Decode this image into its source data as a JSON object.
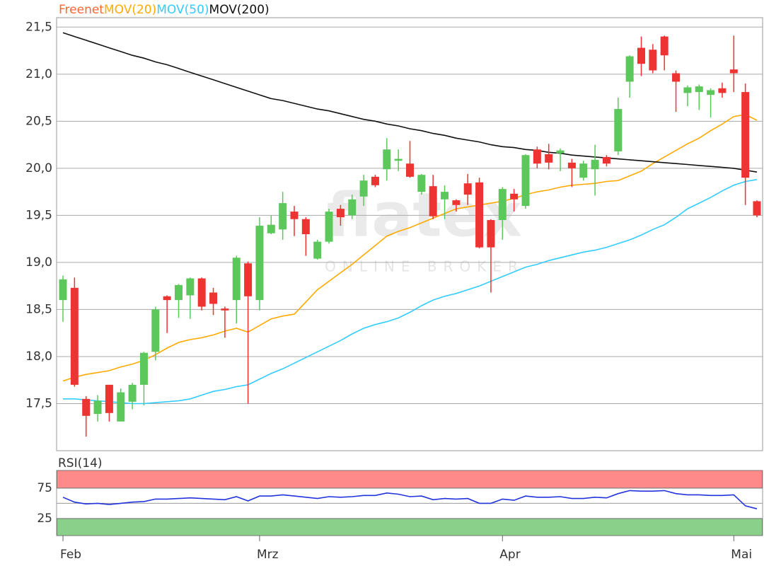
{
  "chart_data": [
    {
      "type": "candlestick",
      "categories": [
        "Feb",
        null,
        null,
        null,
        null,
        null,
        null,
        null,
        null,
        null,
        null,
        null,
        null,
        null,
        null,
        null,
        null,
        "Mrz",
        null,
        null,
        null,
        null,
        null,
        null,
        null,
        null,
        null,
        null,
        null,
        null,
        null,
        null,
        null,
        null,
        null,
        null,
        null,
        null,
        "Apr",
        null,
        null,
        null,
        null,
        null,
        null,
        null,
        null,
        null,
        null,
        null,
        null,
        null,
        null,
        null,
        null,
        null,
        null,
        null,
        "Mai",
        null,
        null
      ],
      "candles": {
        "name": "Freenet",
        "color": "#ff6633",
        "up_color": "#5cc85c",
        "down_color": "#ee3333",
        "open": [
          18.6,
          18.73,
          17.55,
          17.39,
          17.7,
          17.31,
          17.52,
          17.7,
          18.05,
          18.64,
          18.6,
          18.65,
          18.83,
          18.68,
          18.51,
          18.6,
          18.99,
          18.6,
          19.31,
          19.35,
          19.54,
          19.46,
          19.04,
          19.22,
          19.57,
          19.5,
          19.7,
          19.91,
          19.99,
          20.08,
          20.05,
          19.75,
          19.81,
          19.67,
          19.66,
          19.84,
          19.85,
          19.45,
          19.45,
          19.73,
          19.6,
          20.2,
          20.15,
          20.16,
          20.06,
          19.9,
          19.99,
          20.12,
          20.18,
          20.92,
          21.28,
          21.26,
          21.4,
          21.01,
          20.8,
          20.81,
          20.78,
          20.85,
          21.05,
          20.81,
          19.65
        ],
        "high": [
          18.86,
          18.84,
          17.58,
          17.59,
          17.7,
          17.66,
          17.72,
          18.05,
          18.53,
          18.65,
          18.77,
          18.84,
          18.84,
          18.73,
          18.53,
          19.07,
          19.01,
          19.48,
          19.5,
          19.75,
          19.6,
          19.48,
          19.24,
          19.57,
          19.61,
          19.72,
          19.93,
          19.93,
          20.32,
          20.2,
          20.29,
          19.94,
          19.93,
          19.82,
          19.67,
          19.94,
          19.9,
          19.46,
          19.8,
          19.78,
          20.15,
          20.23,
          20.26,
          20.21,
          20.1,
          20.08,
          20.25,
          20.14,
          20.75,
          21.2,
          21.4,
          21.32,
          21.41,
          21.04,
          20.88,
          20.89,
          20.85,
          20.91,
          21.41,
          20.9,
          19.66
        ],
        "low": [
          18.37,
          17.68,
          17.15,
          17.31,
          17.31,
          17.31,
          17.44,
          17.48,
          17.96,
          18.25,
          18.41,
          18.4,
          18.49,
          18.44,
          18.2,
          18.35,
          17.5,
          18.49,
          19.3,
          19.24,
          19.28,
          19.07,
          19.03,
          19.2,
          19.39,
          19.46,
          19.6,
          19.8,
          19.87,
          19.97,
          19.9,
          19.72,
          19.46,
          19.46,
          19.54,
          19.61,
          19.15,
          18.68,
          19.24,
          19.54,
          19.57,
          20.0,
          19.99,
          19.97,
          19.8,
          19.87,
          19.71,
          20.02,
          20.14,
          20.75,
          20.98,
          21.01,
          21.04,
          20.6,
          20.66,
          20.62,
          20.54,
          20.75,
          20.81,
          19.61,
          19.48
        ],
        "close": [
          18.82,
          17.7,
          17.37,
          17.53,
          17.4,
          17.62,
          17.7,
          18.04,
          18.5,
          18.6,
          18.76,
          18.83,
          18.53,
          18.56,
          18.49,
          19.05,
          18.64,
          19.39,
          19.4,
          19.63,
          19.46,
          19.3,
          19.22,
          19.54,
          19.48,
          19.67,
          19.87,
          19.82,
          20.2,
          20.1,
          19.91,
          19.93,
          19.49,
          19.75,
          19.61,
          19.72,
          19.16,
          19.16,
          19.78,
          19.67,
          20.14,
          20.05,
          20.06,
          20.19,
          20.0,
          20.05,
          20.09,
          20.05,
          20.63,
          21.19,
          21.11,
          21.04,
          21.2,
          20.92,
          20.86,
          20.87,
          20.83,
          20.8,
          21.01,
          19.9,
          19.5
        ]
      },
      "series": [
        {
          "name": "MOV(20)",
          "color": "#ffaa00",
          "values": [
            17.74,
            17.78,
            17.81,
            17.83,
            17.85,
            17.89,
            17.92,
            17.96,
            18.02,
            18.09,
            18.15,
            18.18,
            18.2,
            18.23,
            18.27,
            18.3,
            18.26,
            18.33,
            18.4,
            18.43,
            18.45,
            18.58,
            18.71,
            18.8,
            18.89,
            18.98,
            19.08,
            19.18,
            19.28,
            19.33,
            19.37,
            19.42,
            19.47,
            19.52,
            19.57,
            19.59,
            19.61,
            19.63,
            19.65,
            19.68,
            19.72,
            19.75,
            19.77,
            19.8,
            19.82,
            19.83,
            19.84,
            19.86,
            19.87,
            19.92,
            19.97,
            20.05,
            20.12,
            20.19,
            20.26,
            20.32,
            20.4,
            20.47,
            20.55,
            20.57,
            20.51
          ]
        },
        {
          "name": "MOV(50)",
          "color": "#33ccff",
          "values": [
            17.55,
            17.55,
            17.54,
            17.53,
            17.52,
            17.51,
            17.5,
            17.5,
            17.51,
            17.52,
            17.53,
            17.55,
            17.59,
            17.63,
            17.65,
            17.68,
            17.7,
            17.76,
            17.82,
            17.87,
            17.93,
            17.99,
            18.05,
            18.11,
            18.17,
            18.24,
            18.3,
            18.34,
            18.37,
            18.41,
            18.47,
            18.54,
            18.6,
            18.64,
            18.67,
            18.71,
            18.75,
            18.8,
            18.85,
            18.9,
            18.95,
            18.98,
            19.02,
            19.05,
            19.08,
            19.11,
            19.13,
            19.16,
            19.2,
            19.24,
            19.29,
            19.35,
            19.4,
            19.48,
            19.57,
            19.63,
            19.69,
            19.76,
            19.82,
            19.86,
            19.88
          ]
        },
        {
          "name": "MOV(200)",
          "color": "#111111",
          "values": [
            21.44,
            21.4,
            21.36,
            21.32,
            21.28,
            21.24,
            21.2,
            21.17,
            21.13,
            21.1,
            21.06,
            21.02,
            20.98,
            20.94,
            20.9,
            20.86,
            20.82,
            20.78,
            20.74,
            20.72,
            20.69,
            20.66,
            20.63,
            20.61,
            20.58,
            20.55,
            20.52,
            20.5,
            20.47,
            20.45,
            20.42,
            20.4,
            20.37,
            20.35,
            20.32,
            20.3,
            20.28,
            20.25,
            20.23,
            20.22,
            20.2,
            20.19,
            20.17,
            20.16,
            20.14,
            20.13,
            20.12,
            20.11,
            20.1,
            20.09,
            20.08,
            20.07,
            20.06,
            20.05,
            20.04,
            20.03,
            20.02,
            20.01,
            20.0,
            19.98,
            19.96
          ]
        }
      ],
      "ylim": [
        17.0,
        21.6
      ],
      "yticks": [
        {
          "value": 17.5,
          "label": "17,5"
        },
        {
          "value": 18.0,
          "label": "18,0"
        },
        {
          "value": 18.5,
          "label": "18,5"
        },
        {
          "value": 19.0,
          "label": "19,0"
        },
        {
          "value": 19.5,
          "label": "19,5"
        },
        {
          "value": 20.0,
          "label": "20,0"
        },
        {
          "value": 20.5,
          "label": "20,5"
        },
        {
          "value": 21.0,
          "label": "21,0"
        },
        {
          "value": 21.5,
          "label": "21,5"
        }
      ],
      "grid": true,
      "watermark": {
        "brand": "flatex",
        "tagline": "ONLINE BROKER"
      }
    },
    {
      "type": "line",
      "series": [
        {
          "name": "RSI(14)",
          "color": "#2233dd",
          "values": [
            60,
            52,
            49,
            50,
            48,
            50,
            52,
            53,
            57,
            57,
            58,
            59,
            58,
            57,
            56,
            61,
            54,
            62,
            62,
            64,
            62,
            60,
            58,
            61,
            60,
            61,
            63,
            63,
            67,
            65,
            61,
            62,
            56,
            58,
            57,
            58,
            50,
            50,
            57,
            55,
            62,
            60,
            60,
            61,
            58,
            58,
            60,
            59,
            66,
            71,
            70,
            70,
            71,
            66,
            64,
            64,
            63,
            63,
            64,
            46,
            41
          ]
        }
      ],
      "ylim": [
        -3,
        104
      ],
      "yticks": [
        25,
        75
      ],
      "reference_lines": [
        50
      ],
      "bands": [
        {
          "from": 75,
          "to": 104,
          "color": "#ff8a8a"
        },
        {
          "from": -3,
          "to": 25,
          "color": "#8ad08a"
        }
      ]
    }
  ]
}
